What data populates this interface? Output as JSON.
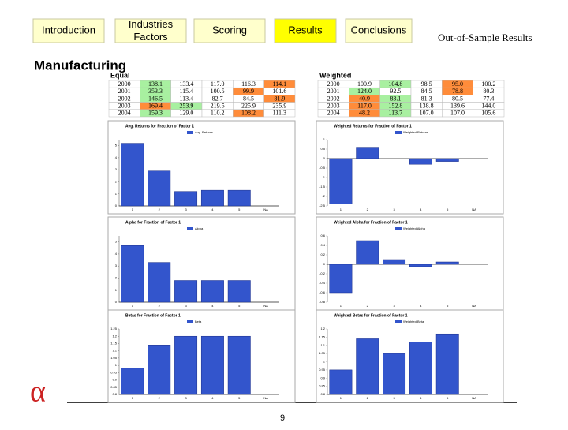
{
  "nav": [
    "Introduction",
    "Industries Factors",
    "Scoring",
    "Results",
    "Conclusions"
  ],
  "section_title": "Out-of-Sample Results",
  "heading": "Manufacturing",
  "tables": [
    {
      "title": "Equal",
      "rows": [
        [
          "2000",
          138.1,
          133.4,
          117.0,
          116.3,
          114.1
        ],
        [
          "2001",
          353.3,
          115.4,
          100.5,
          99.9,
          101.6
        ],
        [
          "2002",
          146.5,
          113.4,
          82.7,
          84.5,
          81.9
        ],
        [
          "2003",
          169.4,
          253.9,
          219.5,
          225.9,
          235.9
        ],
        [
          "2004",
          159.3,
          129.0,
          110.2,
          108.2,
          111.3
        ]
      ]
    },
    {
      "title": "Weighted",
      "rows": [
        [
          "2000",
          100.9,
          104.8,
          98.5,
          95.0,
          100.2
        ],
        [
          "2001",
          124.0,
          92.5,
          84.5,
          78.8,
          80.3
        ],
        [
          "2002",
          40.9,
          83.1,
          81.3,
          80.5,
          77.4
        ],
        [
          "2003",
          117.0,
          152.8,
          138.8,
          139.6,
          144.0
        ],
        [
          "2004",
          48.2,
          113.7,
          107.0,
          107.0,
          105.6
        ]
      ]
    }
  ],
  "chart_data": [
    {
      "type": "bar",
      "title": "Avg. Returns for Fraction of Factor 1",
      "categories": [
        "1",
        "2",
        "3",
        "4",
        "5",
        "NA"
      ],
      "series": [
        {
          "name": "Avg. Returns",
          "color": "#3355cc",
          "values": [
            5.2,
            2.9,
            1.2,
            1.3,
            1.3,
            null
          ]
        }
      ],
      "ylim": [
        0,
        5.5
      ],
      "yticks": [
        0,
        1,
        2,
        3,
        4,
        5
      ]
    },
    {
      "type": "bar",
      "title": "Weighted Returns for Fraction of Factor 1",
      "categories": [
        "1",
        "2",
        "3",
        "4",
        "5",
        "NA"
      ],
      "series": [
        {
          "name": "Weighted Returns",
          "color": "#3355cc",
          "values": [
            -2.4,
            0.6,
            0,
            -0.3,
            -0.15,
            null
          ]
        }
      ],
      "ylim": [
        -2.5,
        1
      ],
      "yticks": [
        -2.5,
        -2,
        -1.5,
        -1,
        -0.5,
        0,
        0.5,
        1
      ]
    },
    {
      "type": "bar",
      "title": "Alpha for Fraction of Factor 1",
      "categories": [
        "1",
        "2",
        "3",
        "4",
        "5",
        "NA"
      ],
      "series": [
        {
          "name": "Alpha",
          "color": "#3355cc",
          "values": [
            4.7,
            3.3,
            1.8,
            1.8,
            1.8,
            null
          ]
        }
      ],
      "ylim": [
        0,
        5.5
      ],
      "yticks": [
        0,
        1,
        2,
        3,
        4,
        5
      ]
    },
    {
      "type": "bar",
      "title": "Weighted Alpha for Fraction of Factor 1",
      "categories": [
        "1",
        "2",
        "3",
        "4",
        "5",
        "NA"
      ],
      "series": [
        {
          "name": "Weighted Alpha",
          "color": "#3355cc",
          "values": [
            -0.6,
            0.5,
            0.1,
            -0.05,
            0.05,
            null
          ]
        }
      ],
      "ylim": [
        -0.8,
        0.6
      ],
      "yticks": [
        -0.8,
        -0.6,
        -0.4,
        -0.2,
        0,
        0.2,
        0.4,
        0.6
      ]
    },
    {
      "type": "bar",
      "title": "Betas for Fraction of Factor 1",
      "categories": [
        "1",
        "2",
        "3",
        "4",
        "5",
        "NA"
      ],
      "series": [
        {
          "name": "Beta",
          "color": "#3355cc",
          "values": [
            0.98,
            1.14,
            1.2,
            1.2,
            1.2,
            null
          ]
        }
      ],
      "ylim": [
        0.8,
        1.25
      ],
      "yticks": [
        0.8,
        0.85,
        0.9,
        0.95,
        1,
        1.05,
        1.1,
        1.15,
        1.2,
        1.25
      ]
    },
    {
      "type": "bar",
      "title": "Weighted Betas for Fraction of Factor 1",
      "categories": [
        "1",
        "2",
        "3",
        "4",
        "5",
        "NA"
      ],
      "series": [
        {
          "name": "Weighted Beta",
          "color": "#3355cc",
          "values": [
            0.95,
            1.14,
            1.05,
            1.12,
            1.17,
            null
          ]
        }
      ],
      "ylim": [
        0.8,
        1.2
      ],
      "yticks": [
        0.8,
        0.85,
        0.9,
        0.95,
        1,
        1.05,
        1.1,
        1.15,
        1.2
      ]
    }
  ],
  "page_number": "9"
}
